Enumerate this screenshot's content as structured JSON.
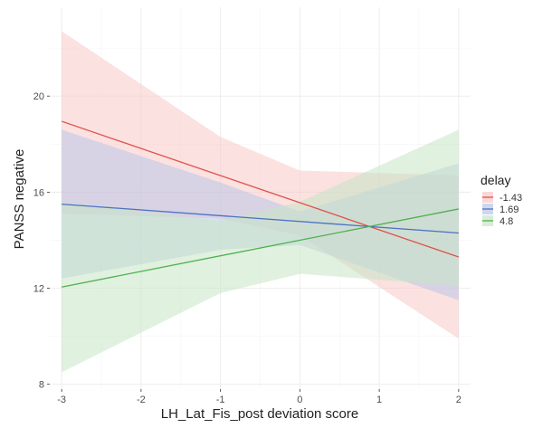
{
  "chart_data": {
    "type": "line",
    "title": "",
    "xlabel": "LH_Lat_Fis_post deviation score",
    "ylabel": "PANSS negative",
    "xlim": [
      -3.15,
      2.15
    ],
    "ylim": [
      7.8,
      23.7
    ],
    "x_ticks": [
      -3,
      -2,
      -1,
      0,
      1,
      2
    ],
    "y_ticks": [
      8,
      12,
      16,
      20
    ],
    "grid": true,
    "legend": {
      "title": "delay",
      "placement": "right"
    },
    "x": [
      -3,
      2
    ],
    "series": [
      {
        "name": "-1.43",
        "color": "#e0504a",
        "fill": "#f8c8c6",
        "values": [
          18.95,
          13.3
        ],
        "ci_lower": [
          15.1,
          9.9
        ],
        "ci_upper": [
          22.7,
          16.7
        ],
        "ci_x": [
          -3,
          -1,
          0,
          2
        ],
        "ci_lower_shape": [
          15.1,
          14.9,
          14.2,
          9.9
        ],
        "ci_upper_shape": [
          22.7,
          18.3,
          16.9,
          16.7
        ]
      },
      {
        "name": "1.69",
        "color": "#4a72c0",
        "fill": "#b9c6e8",
        "values": [
          15.5,
          14.3
        ],
        "ci_lower": [
          12.4,
          11.5
        ],
        "ci_upper": [
          18.6,
          17.2
        ],
        "ci_x": [
          -3,
          -1,
          0,
          2
        ],
        "ci_lower_shape": [
          12.4,
          13.6,
          13.8,
          11.5
        ],
        "ci_upper_shape": [
          18.6,
          16.4,
          15.2,
          17.2
        ]
      },
      {
        "name": "4.8",
        "color": "#4fb04f",
        "fill": "#c7e6c4",
        "values": [
          12.05,
          15.3
        ],
        "ci_lower": [
          8.5,
          12.1
        ],
        "ci_upper": [
          15.6,
          18.6
        ],
        "ci_x": [
          -3,
          -1,
          0,
          2
        ],
        "ci_lower_shape": [
          8.5,
          11.8,
          12.6,
          12.1
        ],
        "ci_upper_shape": [
          15.6,
          14.8,
          15.6,
          18.6
        ]
      }
    ]
  }
}
